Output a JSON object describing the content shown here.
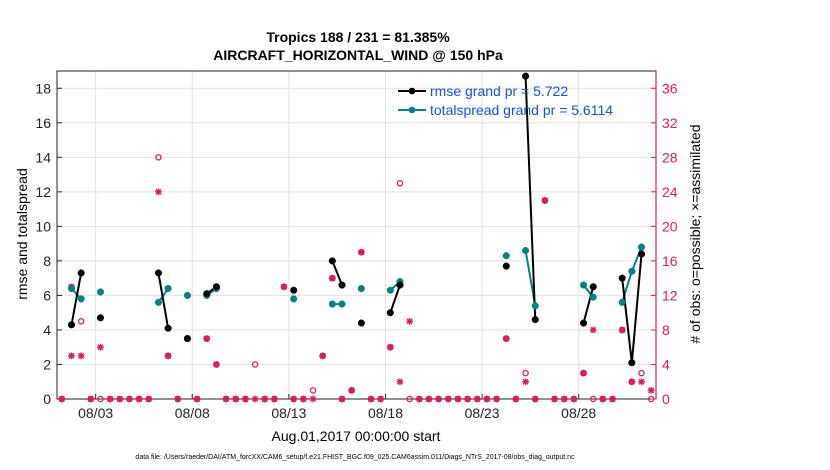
{
  "colors": {
    "rmse": "#000000",
    "spread": "#0a7f80",
    "obs": "#d81b60",
    "legend_text": "#1a4fd8",
    "grid": "#e3e3e3",
    "axis": "#222222"
  },
  "chart_data": {
    "type": "line",
    "title": "Tropics 188 / 231 = 81.385%",
    "subtitle": "AIRCRAFT_HORIZONTAL_WIND @ 150 hPa",
    "xlabel": "Aug.01,2017 00:00:00 start",
    "ylabel": "rmse and totalspread",
    "ylabel_right": "# of obs: o=possible; ×=assimilated",
    "footer": "data file: /Users/raeder/DAI/ATM_forcXX/CAM6_setup/f.e21.FHIST_BGC.f09_025.CAM6assim.011/Diags_NTrS_2017-08/obs_diag_output.nc",
    "xlim": [
      0,
      31
    ],
    "ylim": [
      0,
      19
    ],
    "ylim_right": [
      0,
      38
    ],
    "x_ticks": [
      2,
      7,
      12,
      17,
      22,
      27
    ],
    "x_tick_labels": [
      "08/03",
      "08/08",
      "08/13",
      "08/18",
      "08/23",
      "08/28"
    ],
    "y_ticks": [
      0,
      2,
      4,
      6,
      8,
      10,
      12,
      14,
      16,
      18
    ],
    "y_ticks_right": [
      0,
      4,
      8,
      12,
      16,
      20,
      24,
      28,
      32,
      36
    ],
    "legend": [
      {
        "name": "rmse grand pr = 5.722"
      },
      {
        "name": "totalspread grand pr = 5.6114"
      }
    ],
    "legend_position": "top-right",
    "series": [
      {
        "name": "rmse",
        "x": [
          0.75,
          1.25,
          1.75,
          2.25,
          2.75,
          3.25,
          3.75,
          4.25,
          4.75,
          5.25,
          5.75,
          6.25,
          6.75,
          7.25,
          7.75,
          8.25,
          8.75,
          9.25,
          9.75,
          10.25,
          10.75,
          11.25,
          11.75,
          12.25,
          12.75,
          13.25,
          13.75,
          14.25,
          14.75,
          15.25,
          15.75,
          16.25,
          16.75,
          17.25,
          17.75,
          18.25,
          18.75,
          19.25,
          19.75,
          20.25,
          20.75,
          21.25,
          21.75,
          22.25,
          22.75,
          23.25,
          23.75,
          24.25,
          24.75,
          25.25,
          25.75,
          26.25,
          26.75,
          27.25,
          27.75,
          28.25,
          28.75,
          29.25,
          29.75,
          30.25,
          30.75
        ],
        "values": [
          4.3,
          7.3,
          null,
          4.7,
          null,
          null,
          null,
          null,
          null,
          7.3,
          4.1,
          null,
          3.5,
          null,
          6.1,
          6.5,
          null,
          null,
          null,
          null,
          null,
          null,
          null,
          6.3,
          null,
          null,
          null,
          8.0,
          6.6,
          null,
          4.4,
          null,
          null,
          5.0,
          6.6,
          null,
          null,
          null,
          null,
          null,
          null,
          null,
          null,
          null,
          null,
          7.7,
          null,
          18.7,
          4.6,
          null,
          null,
          null,
          null,
          4.4,
          6.5,
          null,
          null,
          7.0,
          2.1,
          8.4,
          null
        ]
      },
      {
        "name": "totalspread",
        "x": [
          0.75,
          1.25,
          1.75,
          2.25,
          2.75,
          3.25,
          3.75,
          4.25,
          4.75,
          5.25,
          5.75,
          6.25,
          6.75,
          7.25,
          7.75,
          8.25,
          8.75,
          9.25,
          9.75,
          10.25,
          10.75,
          11.25,
          11.75,
          12.25,
          12.75,
          13.25,
          13.75,
          14.25,
          14.75,
          15.25,
          15.75,
          16.25,
          16.75,
          17.25,
          17.75,
          18.25,
          18.75,
          19.25,
          19.75,
          20.25,
          20.75,
          21.25,
          21.75,
          22.25,
          22.75,
          23.25,
          23.75,
          24.25,
          24.75,
          25.25,
          25.75,
          26.25,
          26.75,
          27.25,
          27.75,
          28.25,
          28.75,
          29.25,
          29.75,
          30.25,
          30.75
        ],
        "values": [
          6.4,
          5.8,
          null,
          6.2,
          null,
          null,
          null,
          null,
          null,
          5.6,
          6.4,
          null,
          6.0,
          null,
          6.0,
          6.4,
          null,
          null,
          null,
          null,
          null,
          null,
          null,
          5.8,
          null,
          null,
          null,
          5.5,
          5.5,
          null,
          6.4,
          null,
          null,
          6.3,
          6.8,
          null,
          null,
          null,
          null,
          null,
          null,
          null,
          null,
          null,
          null,
          8.3,
          null,
          8.6,
          5.4,
          null,
          null,
          null,
          null,
          6.6,
          5.9,
          null,
          null,
          5.6,
          7.4,
          8.8,
          null
        ]
      },
      {
        "name": "obs_possible",
        "axis": "right",
        "x": [
          0.25,
          0.75,
          1.25,
          1.75,
          2.25,
          2.75,
          3.25,
          3.75,
          4.25,
          4.75,
          5.25,
          5.75,
          6.25,
          6.75,
          7.25,
          7.75,
          8.25,
          8.75,
          9.25,
          9.75,
          10.25,
          10.75,
          11.25,
          11.75,
          12.25,
          12.75,
          13.25,
          13.75,
          14.25,
          14.75,
          15.25,
          15.75,
          16.25,
          16.75,
          17.25,
          17.75,
          18.25,
          18.75,
          19.25,
          19.75,
          20.25,
          20.75,
          21.25,
          21.75,
          22.25,
          22.75,
          23.25,
          23.75,
          24.25,
          24.75,
          25.25,
          25.75,
          26.25,
          26.75,
          27.25,
          27.75,
          28.25,
          28.75,
          29.25,
          29.75,
          30.25,
          30.75
        ],
        "values": [
          0,
          13,
          9,
          0,
          0,
          0,
          0,
          0,
          0,
          0,
          28,
          5,
          0,
          7,
          0,
          7,
          4,
          0,
          0,
          0,
          4,
          0,
          0,
          13,
          0,
          0,
          1,
          5,
          14,
          0,
          1,
          17,
          0,
          0,
          6,
          25,
          0,
          0,
          0,
          0,
          0,
          0,
          0,
          0,
          0,
          0,
          7,
          0,
          3,
          0,
          23,
          0,
          0,
          0,
          3,
          0,
          0,
          0,
          8,
          2,
          3,
          0
        ]
      },
      {
        "name": "obs_assimilated",
        "axis": "right",
        "x": [
          0.25,
          0.75,
          1.25,
          1.75,
          2.25,
          2.75,
          3.25,
          3.75,
          4.25,
          4.75,
          5.25,
          5.75,
          6.25,
          6.75,
          7.25,
          7.75,
          8.25,
          8.75,
          9.25,
          9.75,
          10.25,
          10.75,
          11.25,
          11.75,
          12.25,
          12.75,
          13.25,
          13.75,
          14.25,
          14.75,
          15.25,
          15.75,
          16.25,
          16.75,
          17.25,
          17.75,
          18.25,
          18.75,
          19.25,
          19.75,
          20.25,
          20.75,
          21.25,
          21.75,
          22.25,
          22.75,
          23.25,
          23.75,
          24.25,
          24.75,
          25.25,
          25.75,
          26.25,
          26.75,
          27.25,
          27.75,
          28.25,
          28.75,
          29.25,
          29.75,
          30.25,
          30.75
        ],
        "values": [
          0,
          5,
          5,
          0,
          6,
          0,
          0,
          0,
          0,
          0,
          24,
          5,
          0,
          7,
          0,
          7,
          4,
          0,
          0,
          0,
          0,
          0,
          0,
          13,
          0,
          0,
          0,
          5,
          14,
          0,
          1,
          17,
          0,
          0,
          6,
          2,
          9,
          0,
          0,
          0,
          0,
          0,
          0,
          0,
          0,
          0,
          7,
          0,
          2,
          0,
          23,
          0,
          0,
          0,
          3,
          8,
          0,
          0,
          8,
          2,
          2,
          1
        ]
      }
    ]
  }
}
